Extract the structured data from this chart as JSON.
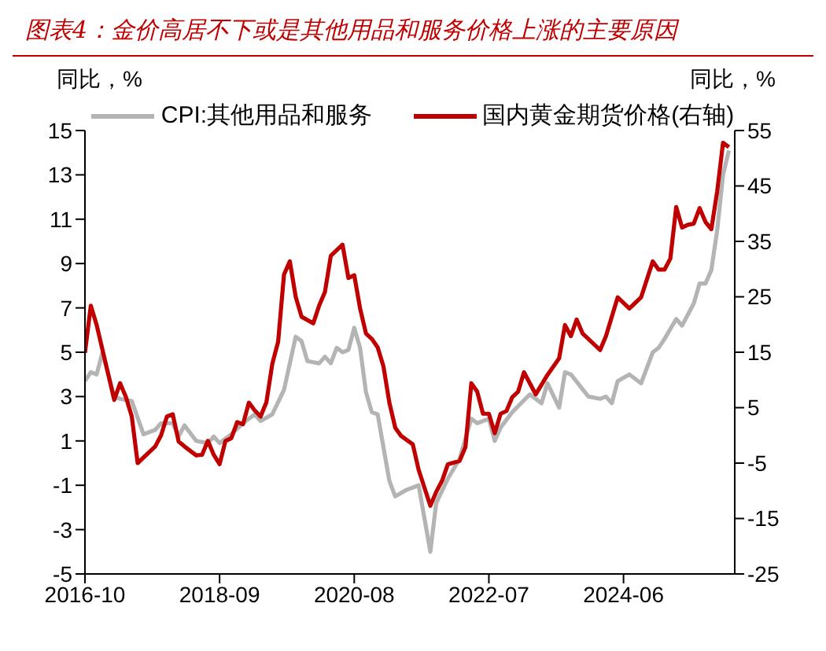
{
  "chart_data": {
    "type": "line",
    "title": "图表4：金价高居不下或是其他用品和服务价格上涨的主要原因",
    "ylabel": "同比，%",
    "y2label": "同比，%",
    "xlim": [
      "2016-10",
      "2026-01"
    ],
    "xticks": [
      "2016-10",
      "2018-09",
      "2020-08",
      "2022-07",
      "2024-06"
    ],
    "ylim": [
      -5,
      15
    ],
    "yticks": [
      -5,
      -3,
      -1,
      1,
      3,
      5,
      7,
      9,
      11,
      13,
      15
    ],
    "y2lim": [
      -25,
      55
    ],
    "y2ticks": [
      -25,
      -15,
      -5,
      5,
      15,
      25,
      35,
      45,
      55
    ],
    "legend": "top",
    "series": [
      {
        "name": "CPI:其他用品和服务",
        "color": "#b4b4b4",
        "x": [
          "2016-10",
          "2016-11",
          "2016-12",
          "2017-01",
          "2017-03",
          "2017-04",
          "2017-06",
          "2017-08",
          "2017-10",
          "2017-11",
          "2018-01",
          "2018-02",
          "2018-03",
          "2018-05",
          "2018-07",
          "2018-08",
          "2018-09",
          "2018-11",
          "2019-01",
          "2019-03",
          "2019-04",
          "2019-06",
          "2019-08",
          "2019-09",
          "2019-10",
          "2019-11",
          "2019-12",
          "2020-02",
          "2020-03",
          "2020-04",
          "2020-05",
          "2020-06",
          "2020-07",
          "2020-08",
          "2020-09",
          "2020-10",
          "2020-11",
          "2020-12",
          "2021-02",
          "2021-03",
          "2021-05",
          "2021-07",
          "2021-09",
          "2021-10",
          "2021-12",
          "2022-02",
          "2022-04",
          "2022-05",
          "2022-07",
          "2022-08",
          "2022-09",
          "2022-11",
          "2023-02",
          "2023-04",
          "2023-05",
          "2023-07",
          "2023-08",
          "2023-09",
          "2023-12",
          "2024-02",
          "2024-03",
          "2024-04",
          "2024-05",
          "2024-07",
          "2024-09",
          "2024-11",
          "2024-12",
          "2025-01",
          "2025-03",
          "2025-04",
          "2025-06",
          "2025-07",
          "2025-08",
          "2025-09",
          "2025-10",
          "2025-11",
          "2025-12"
        ],
        "values": [
          3.7,
          4.1,
          4.0,
          5.0,
          3.0,
          2.9,
          2.8,
          1.3,
          1.5,
          1.8,
          1.8,
          1.2,
          1.7,
          1.0,
          0.9,
          1.2,
          0.9,
          1.3,
          1.8,
          2.2,
          1.9,
          2.2,
          3.3,
          4.5,
          5.7,
          5.5,
          4.6,
          4.5,
          4.8,
          4.5,
          5.2,
          5.0,
          5.1,
          6.1,
          5.2,
          3.2,
          2.3,
          2.2,
          -0.8,
          -1.5,
          -1.2,
          -1.0,
          -4.0,
          -1.8,
          -0.7,
          0.2,
          2.0,
          1.8,
          2.0,
          1.0,
          1.6,
          2.3,
          3.1,
          2.7,
          3.6,
          2.5,
          4.1,
          4.0,
          3.0,
          2.9,
          3.0,
          2.7,
          3.7,
          4.0,
          3.6,
          5.0,
          5.2,
          5.6,
          6.5,
          6.2,
          7.2,
          8.1,
          8.1,
          8.7,
          10.5,
          13.0,
          14.1
        ]
      },
      {
        "name": "国内黄金期货价格(右轴)",
        "color": "#c00000",
        "axis": "y2",
        "x": [
          "2016-10",
          "2016-11",
          "2016-12",
          "2017-01",
          "2017-02",
          "2017-03",
          "2017-04",
          "2017-05",
          "2017-06",
          "2017-07",
          "2017-09",
          "2017-10",
          "2017-11",
          "2017-12",
          "2018-01",
          "2018-02",
          "2018-03",
          "2018-05",
          "2018-06",
          "2018-07",
          "2018-08",
          "2018-09",
          "2018-10",
          "2018-11",
          "2018-12",
          "2019-01",
          "2019-02",
          "2019-03",
          "2019-04",
          "2019-05",
          "2019-06",
          "2019-07",
          "2019-08",
          "2019-09",
          "2019-10",
          "2019-11",
          "2020-01",
          "2020-02",
          "2020-03",
          "2020-04",
          "2020-06",
          "2020-07",
          "2020-08",
          "2020-09",
          "2020-10",
          "2020-11",
          "2020-12",
          "2021-01",
          "2021-02",
          "2021-03",
          "2021-04",
          "2021-06",
          "2021-07",
          "2021-09",
          "2021-10",
          "2021-11",
          "2021-12",
          "2022-02",
          "2022-03",
          "2022-04",
          "2022-05",
          "2022-06",
          "2022-07",
          "2022-08",
          "2022-09",
          "2022-10",
          "2022-11",
          "2022-12",
          "2023-01",
          "2023-02",
          "2023-03",
          "2023-05",
          "2023-07",
          "2023-08",
          "2023-09",
          "2023-10",
          "2023-11",
          "2023-12",
          "2024-02",
          "2024-03",
          "2024-05",
          "2024-07",
          "2024-08",
          "2024-09",
          "2024-11",
          "2024-12",
          "2025-01",
          "2025-02",
          "2025-03",
          "2025-04",
          "2025-05",
          "2025-06",
          "2025-07",
          "2025-08",
          "2025-09",
          "2025-10",
          "2025-11",
          "2025-12"
        ],
        "values": [
          14.9,
          23.4,
          19.9,
          15.4,
          10.9,
          6.4,
          9.4,
          6.9,
          3.4,
          -5.0,
          -3.0,
          -2.0,
          0,
          3.4,
          3.8,
          -1.1,
          -2.0,
          -3.6,
          -3.5,
          -1.0,
          -3.5,
          -5.2,
          -1.0,
          -0.5,
          2.4,
          2.0,
          5.9,
          4.5,
          3.4,
          6.0,
          12.9,
          16.9,
          29,
          31.4,
          25,
          21.4,
          20.2,
          23.4,
          25.9,
          32.4,
          34.4,
          28.4,
          28.9,
          22.9,
          18.4,
          17.4,
          15.9,
          12.4,
          5.9,
          1.4,
          -0.1,
          -1.6,
          -6.2,
          -12.7,
          -10.2,
          -8.2,
          -5.2,
          -4.6,
          -2.1,
          9.4,
          7.9,
          3.9,
          3.9,
          0.4,
          3.9,
          4.4,
          6.9,
          7.9,
          11.4,
          9.4,
          7.4,
          10.9,
          13.9,
          19.9,
          17.9,
          20.9,
          18.4,
          17.4,
          15.4,
          17.9,
          24.9,
          22.9,
          23.9,
          24.9,
          31.4,
          29.9,
          29.9,
          31.9,
          41.2,
          37.5,
          38,
          38.2,
          41,
          38.5,
          37.2,
          44,
          52.8,
          52
        ]
      }
    ]
  }
}
